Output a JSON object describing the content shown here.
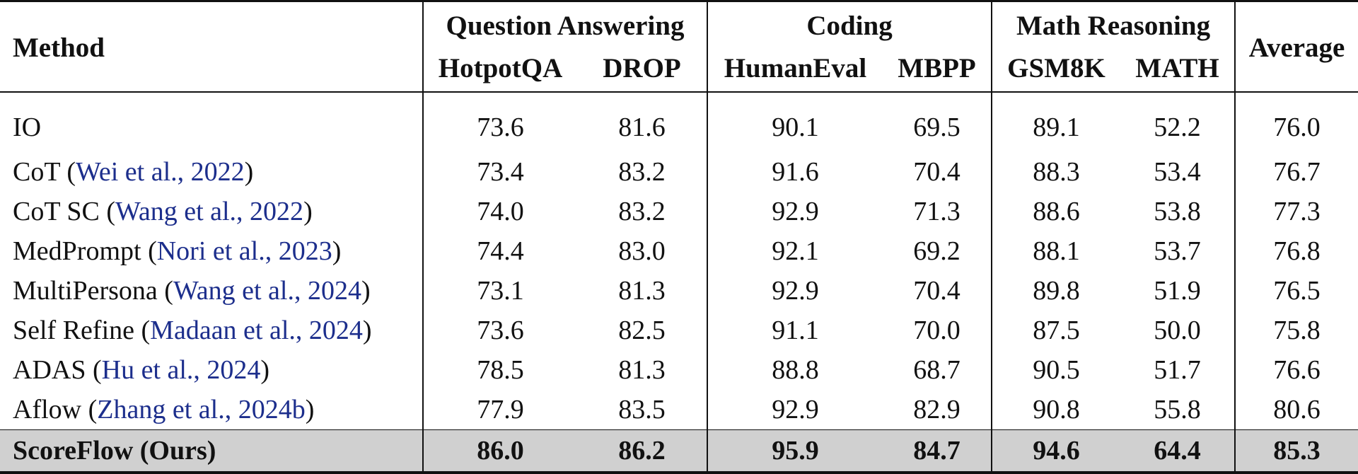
{
  "header": {
    "method": "Method",
    "groups": [
      {
        "label": "Question Answering",
        "columns": [
          "HotpotQA",
          "DROP"
        ]
      },
      {
        "label": "Coding",
        "columns": [
          "HumanEval",
          "MBPP"
        ]
      },
      {
        "label": "Math Reasoning",
        "columns": [
          "GSM8K",
          "MATH"
        ]
      }
    ],
    "average": "Average"
  },
  "rows": [
    {
      "name": "IO",
      "cite": "",
      "values": [
        "73.6",
        "81.6",
        "90.1",
        "69.5",
        "89.1",
        "52.2",
        "76.0"
      ]
    },
    {
      "name": "CoT",
      "cite": "Wei et al., 2022",
      "values": [
        "73.4",
        "83.2",
        "91.6",
        "70.4",
        "88.3",
        "53.4",
        "76.7"
      ]
    },
    {
      "name": "CoT SC",
      "cite": "Wang et al., 2022",
      "values": [
        "74.0",
        "83.2",
        "92.9",
        "71.3",
        "88.6",
        "53.8",
        "77.3"
      ]
    },
    {
      "name": "MedPrompt",
      "cite": "Nori et al., 2023",
      "values": [
        "74.4",
        "83.0",
        "92.1",
        "69.2",
        "88.1",
        "53.7",
        "76.8"
      ]
    },
    {
      "name": "MultiPersona",
      "cite": "Wang et al., 2024",
      "values": [
        "73.1",
        "81.3",
        "92.9",
        "70.4",
        "89.8",
        "51.9",
        "76.5"
      ]
    },
    {
      "name": "Self Refine",
      "cite": "Madaan et al., 2024",
      "values": [
        "73.6",
        "82.5",
        "91.1",
        "70.0",
        "87.5",
        "50.0",
        "75.8"
      ]
    },
    {
      "name": "ADAS",
      "cite": "Hu et al., 2024",
      "values": [
        "78.5",
        "81.3",
        "88.8",
        "68.7",
        "90.5",
        "51.7",
        "76.6"
      ]
    },
    {
      "name": "Aflow",
      "cite": "Zhang et al., 2024b",
      "values": [
        "77.9",
        "83.5",
        "92.9",
        "82.9",
        "90.8",
        "55.8",
        "80.6"
      ]
    },
    {
      "name": "ScoreFlow (Ours)",
      "cite": "",
      "values": [
        "86.0",
        "86.2",
        "95.9",
        "84.7",
        "94.6",
        "64.4",
        "85.3"
      ]
    }
  ],
  "colors": {
    "citation": "#1c2e8c",
    "highlight_row": "#d0d0d0"
  }
}
